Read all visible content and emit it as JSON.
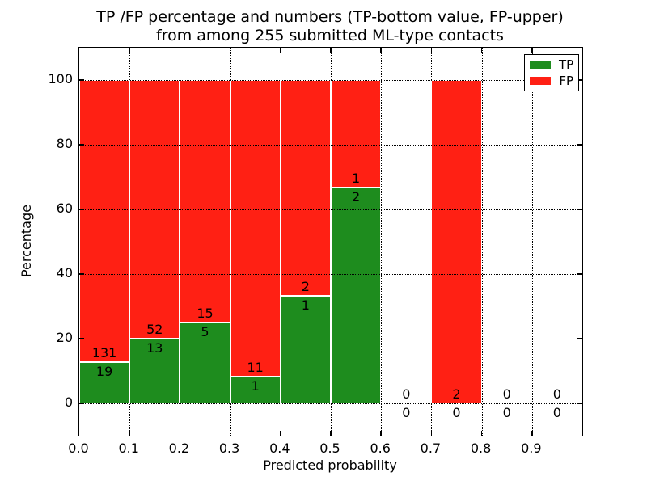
{
  "title": {
    "line1": "TP /FP percentage and numbers (TP-bottom value, FP-upper)",
    "line2": "from among 255 submitted ML-type contacts"
  },
  "axes": {
    "xlabel": "Predicted probability",
    "ylabel": "Percentage",
    "x_tick_labels": [
      "0.0",
      "0.1",
      "0.2",
      "0.3",
      "0.4",
      "0.5",
      "0.6",
      "0.7",
      "0.8",
      "0.9"
    ],
    "y_tick_labels": [
      "0",
      "20",
      "40",
      "60",
      "80",
      "100"
    ],
    "y_tick_values": [
      0,
      20,
      40,
      60,
      80,
      100
    ],
    "grid": "dotted"
  },
  "legend": {
    "position": "upper right",
    "items": [
      {
        "label": "TP",
        "color": "#1e8c1e"
      },
      {
        "label": "FP",
        "color": "#ff2014"
      }
    ]
  },
  "colors": {
    "tp": "#1e8c1e",
    "fp": "#ff2014",
    "edge": "#ffffff",
    "grid": "#000000"
  },
  "chart_data": {
    "type": "bar",
    "stacked": true,
    "title": "TP /FP percentage and numbers (TP-bottom value, FP-upper) from among 255 submitted ML-type contacts",
    "xlabel": "Predicted probability",
    "ylabel": "Percentage",
    "xlim": [
      0.0,
      1.0
    ],
    "ylim": [
      -10,
      110
    ],
    "bin_width": 0.1,
    "total_contacts": 255,
    "categories": [
      "0.0-0.1",
      "0.1-0.2",
      "0.2-0.3",
      "0.3-0.4",
      "0.4-0.5",
      "0.5-0.6",
      "0.6-0.7",
      "0.7-0.8",
      "0.8-0.9",
      "0.9-1.0"
    ],
    "x_starts": [
      0.0,
      0.1,
      0.2,
      0.3,
      0.4,
      0.5,
      0.6,
      0.7,
      0.8,
      0.9
    ],
    "series": [
      {
        "name": "TP",
        "color": "#1e8c1e",
        "counts": [
          19,
          13,
          5,
          1,
          1,
          2,
          0,
          0,
          0,
          0
        ],
        "percent": [
          12.67,
          20,
          25,
          8.33,
          33.33,
          66.67,
          0,
          0,
          0,
          0
        ]
      },
      {
        "name": "FP",
        "color": "#ff2014",
        "counts": [
          131,
          52,
          15,
          11,
          2,
          1,
          0,
          2,
          0,
          0
        ],
        "percent": [
          87.33,
          80,
          75,
          91.67,
          66.67,
          33.33,
          0,
          100,
          0,
          0
        ]
      }
    ]
  }
}
